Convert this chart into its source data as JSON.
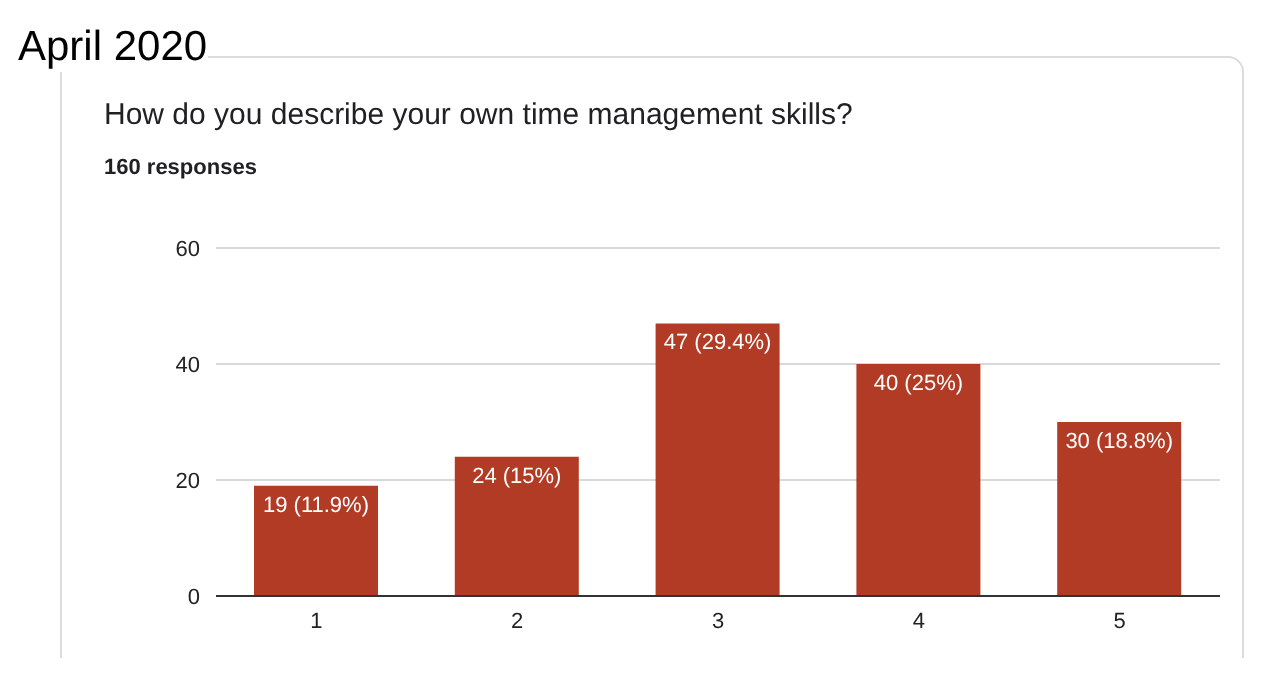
{
  "chart_data": {
    "type": "bar",
    "title": "April 2020",
    "subtitle": "How do you describe your own time management skills?",
    "annotations": [
      "160 responses"
    ],
    "categories": [
      "1",
      "2",
      "3",
      "4",
      "5"
    ],
    "values": [
      19,
      24,
      47,
      40,
      30
    ],
    "value_labels": [
      "19 (11.9%)",
      "24 (15%)",
      "47 (29.4%)",
      "40 (25%)",
      "30 (18.8%)"
    ],
    "color": "#b13b25",
    "ylim": [
      0,
      60
    ],
    "yticks": [
      0,
      20,
      40,
      60
    ],
    "grid": "y",
    "legend": false
  }
}
